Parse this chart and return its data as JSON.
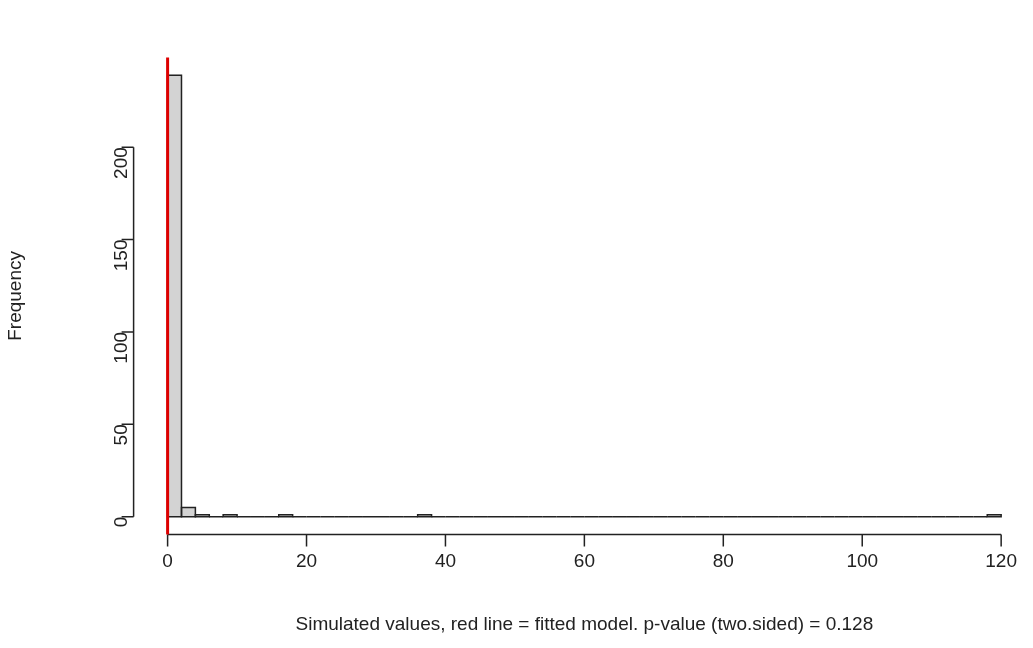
{
  "chart_data": {
    "type": "histogram",
    "xlabel": "Simulated values, red line = fitted model. p-value (two.sided) = 0.128",
    "ylabel": "Frequency",
    "bins": [
      0,
      2,
      4,
      6,
      8,
      10,
      12,
      14,
      16,
      18,
      20,
      22,
      24,
      26,
      28,
      30,
      32,
      34,
      36,
      38,
      40,
      42,
      44,
      46,
      48,
      50,
      52,
      54,
      56,
      58,
      60,
      62,
      64,
      66,
      68,
      70,
      72,
      74,
      76,
      78,
      80,
      82,
      84,
      86,
      88,
      90,
      92,
      94,
      96,
      98,
      100,
      102,
      104,
      106,
      108,
      110,
      112,
      114,
      116,
      118,
      120
    ],
    "values": [
      239,
      5,
      1,
      0,
      1,
      0,
      0,
      0,
      1,
      0,
      0,
      0,
      0,
      0,
      0,
      0,
      0,
      0,
      1,
      0,
      0,
      0,
      0,
      0,
      0,
      0,
      0,
      0,
      0,
      0,
      0,
      0,
      0,
      0,
      0,
      0,
      0,
      0,
      0,
      0,
      0,
      0,
      0,
      0,
      0,
      0,
      0,
      0,
      0,
      0,
      0,
      0,
      0,
      0,
      0,
      0,
      0,
      0,
      0,
      1
    ],
    "color": "#d3d3d3",
    "xlim": [
      0,
      120
    ],
    "xticks": [
      0,
      20,
      40,
      60,
      80,
      100,
      120
    ],
    "ylim": [
      -9.6,
      248.6
    ],
    "yticks": [
      0,
      50,
      100,
      150,
      200
    ],
    "ref_lines": [
      {
        "axis": "x",
        "value": 0,
        "color": "#dd0000"
      }
    ],
    "grid": false,
    "legend": false
  }
}
